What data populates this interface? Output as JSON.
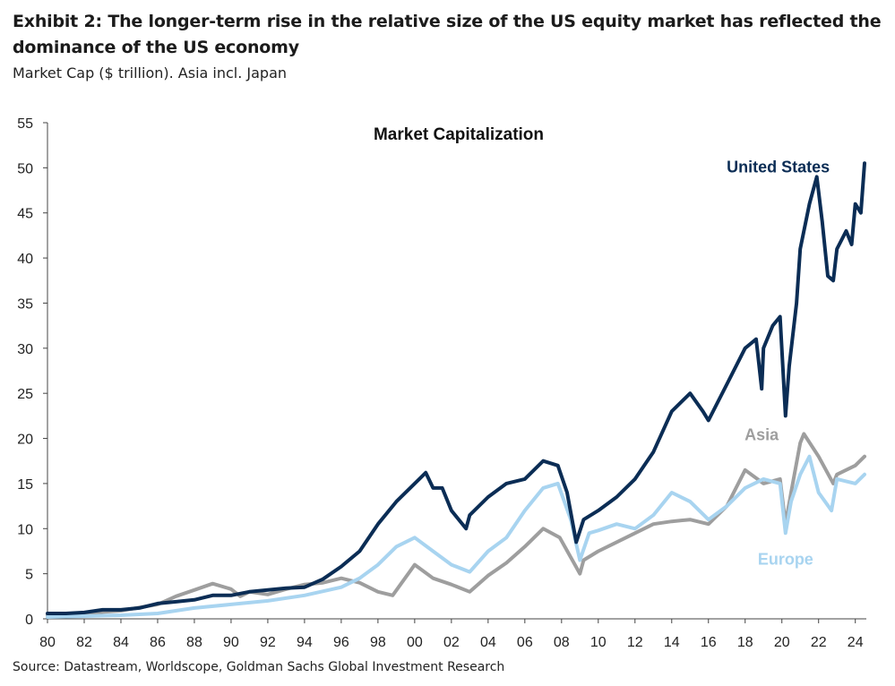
{
  "exhibit": {
    "title": "Exhibit 2: The longer-term rise in the relative size of the US equity market has reflected the dominance of the US economy",
    "subtitle": "Market Cap ($ trillion). Asia incl. Japan",
    "source": "Source: Datastream, Worldscope, Goldman Sachs Global Investment Research"
  },
  "chart_data": {
    "type": "line",
    "title": "Market Capitalization",
    "xlabel": "",
    "ylabel": "",
    "xlim": [
      1980,
      2024.6
    ],
    "ylim": [
      0,
      55
    ],
    "y_ticks": [
      0,
      5,
      10,
      15,
      20,
      25,
      30,
      35,
      40,
      45,
      50,
      55
    ],
    "x_ticks": [
      1980,
      1982,
      1984,
      1986,
      1988,
      1990,
      1992,
      1994,
      1996,
      1998,
      2000,
      2002,
      2004,
      2006,
      2008,
      2010,
      2012,
      2014,
      2016,
      2018,
      2020,
      2022,
      2024
    ],
    "x_tick_labels": [
      "80",
      "82",
      "84",
      "86",
      "88",
      "90",
      "92",
      "94",
      "96",
      "98",
      "00",
      "02",
      "04",
      "06",
      "08",
      "10",
      "12",
      "14",
      "16",
      "18",
      "20",
      "22",
      "24"
    ],
    "grid": false,
    "series": [
      {
        "name": "Asia",
        "color": "#9e9e9e",
        "x": [
          1980,
          1982,
          1984,
          1986,
          1987,
          1988,
          1989,
          1990,
          1990.5,
          1991,
          1992,
          1993,
          1994,
          1995,
          1996,
          1997,
          1998,
          1998.8,
          2000,
          2001,
          2002,
          2003,
          2004,
          2005,
          2006,
          2007,
          2007.9,
          2009,
          2009.2,
          2010,
          2011,
          2012,
          2013,
          2014,
          2015,
          2016,
          2017,
          2018,
          2019,
          2019.9,
          2020.2,
          2020.5,
          2021,
          2021.2,
          2022,
          2022.8,
          2023,
          2024,
          2024.5
        ],
        "y": [
          0.4,
          0.6,
          0.9,
          1.6,
          2.5,
          3.2,
          3.9,
          3.3,
          2.5,
          3.0,
          2.7,
          3.3,
          3.8,
          4.0,
          4.5,
          4.0,
          3.0,
          2.6,
          6.0,
          4.5,
          3.8,
          3.0,
          4.8,
          6.2,
          8.0,
          10.0,
          9.0,
          5.0,
          6.5,
          7.5,
          8.5,
          9.5,
          10.5,
          10.8,
          11.0,
          10.5,
          12.5,
          16.5,
          15.0,
          15.5,
          10.5,
          14.0,
          19.5,
          20.5,
          18.0,
          15.0,
          16.0,
          17.0,
          18.0
        ]
      },
      {
        "name": "Europe",
        "color": "#a8d4f0",
        "x": [
          1980,
          1982,
          1984,
          1986,
          1988,
          1990,
          1992,
          1994,
          1996,
          1997,
          1998,
          1999,
          2000,
          2001,
          2002,
          2003,
          2004,
          2005,
          2006,
          2007,
          2007.8,
          2008.5,
          2009,
          2009.5,
          2010,
          2011,
          2012,
          2013,
          2014,
          2015,
          2016,
          2017,
          2018,
          2019,
          2019.9,
          2020.2,
          2020.5,
          2021,
          2021.5,
          2022,
          2022.7,
          2023,
          2024,
          2024.5
        ],
        "y": [
          0.2,
          0.3,
          0.4,
          0.6,
          1.2,
          1.6,
          2.0,
          2.6,
          3.5,
          4.5,
          6.0,
          8.0,
          9.0,
          7.5,
          6.0,
          5.2,
          7.5,
          9.0,
          12.0,
          14.5,
          15.0,
          11.0,
          6.5,
          9.5,
          9.8,
          10.5,
          10.0,
          11.5,
          14.0,
          13.0,
          11.0,
          12.5,
          14.5,
          15.5,
          15.0,
          9.5,
          13.0,
          16.0,
          18.0,
          14.0,
          12.0,
          15.5,
          15.0,
          16.0
        ]
      },
      {
        "name": "United States",
        "color": "#0b2d55",
        "x": [
          1980,
          1981,
          1982,
          1983,
          1984,
          1985,
          1986,
          1987,
          1988,
          1989,
          1990,
          1991,
          1992,
          1993,
          1994,
          1995,
          1996,
          1997,
          1998,
          1999,
          2000,
          2000.6,
          2001,
          2001.5,
          2002,
          2002.8,
          2003,
          2004,
          2005,
          2006,
          2007,
          2007.8,
          2008.3,
          2008.8,
          2009.2,
          2010,
          2011,
          2012,
          2013,
          2014,
          2015,
          2015.7,
          2016,
          2017,
          2018,
          2018.6,
          2018.9,
          2019,
          2019.5,
          2019.9,
          2020.2,
          2020.4,
          2020.8,
          2021,
          2021.5,
          2021.9,
          2022.2,
          2022.5,
          2022.8,
          2023,
          2023.5,
          2023.8,
          2024,
          2024.3,
          2024.5
        ],
        "y": [
          0.6,
          0.6,
          0.7,
          1.0,
          1.0,
          1.2,
          1.7,
          1.9,
          2.1,
          2.6,
          2.6,
          3.0,
          3.2,
          3.4,
          3.5,
          4.4,
          5.8,
          7.5,
          10.5,
          13.0,
          15.0,
          16.2,
          14.5,
          14.5,
          12.0,
          10.0,
          11.5,
          13.5,
          15.0,
          15.5,
          17.5,
          17.0,
          14.0,
          8.5,
          11.0,
          12.0,
          13.5,
          15.5,
          18.5,
          23.0,
          25.0,
          23.0,
          22.0,
          26.0,
          30.0,
          31.0,
          25.5,
          30.0,
          32.5,
          33.5,
          22.5,
          28.0,
          35.0,
          41.0,
          46.0,
          49.0,
          44.0,
          38.0,
          37.5,
          41.0,
          43.0,
          41.5,
          46.0,
          45.0,
          50.5
        ]
      }
    ],
    "annotations": [
      {
        "text": "United States",
        "color": "#0b2d55",
        "x": 2019.8,
        "y": 49.5
      },
      {
        "text": "Asia",
        "color": "#9e9e9e",
        "x": 2018.9,
        "y": 19.8
      },
      {
        "text": "Europe",
        "color": "#a8d4f0",
        "x": 2020.2,
        "y": 6.0
      }
    ]
  }
}
